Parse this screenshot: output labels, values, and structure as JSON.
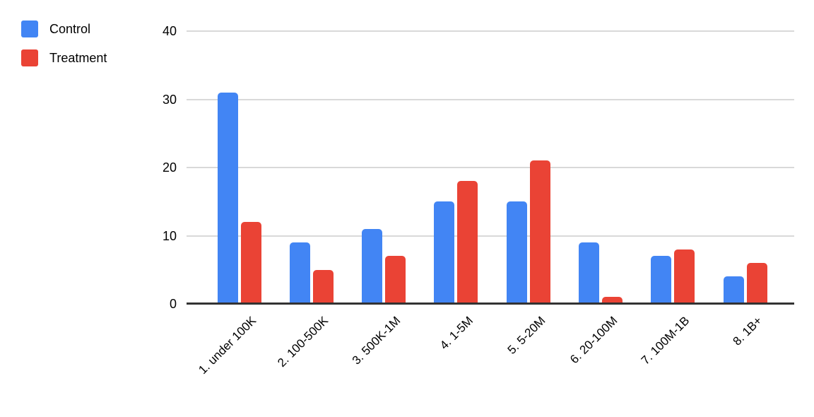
{
  "chart_data": {
    "type": "bar",
    "title": "",
    "xlabel": "",
    "ylabel": "",
    "categories": [
      "1. under 100K",
      "2. 100-500K",
      "3. 500K-1M",
      "4. 1-5M",
      "5. 5-20M",
      "6. 20-100M",
      "7. 100M-1B",
      "8. 1B+"
    ],
    "series": [
      {
        "name": "Control",
        "color": "#4285f4",
        "values": [
          31,
          9,
          11,
          15,
          15,
          9,
          7,
          4
        ]
      },
      {
        "name": "Treatment",
        "color": "#ea4335",
        "values": [
          12,
          5,
          7,
          18,
          21,
          1,
          8,
          6
        ]
      }
    ],
    "ylim": [
      0,
      40
    ],
    "yticks": [
      0,
      10,
      20,
      30,
      40
    ],
    "grid": true,
    "legend_position": "top-left"
  },
  "colors": {
    "background": "#ffffff",
    "grid": "#d9d9d9",
    "baseline": "#333333",
    "text": "#000000",
    "control": "#4285f4",
    "treatment": "#ea4335"
  }
}
